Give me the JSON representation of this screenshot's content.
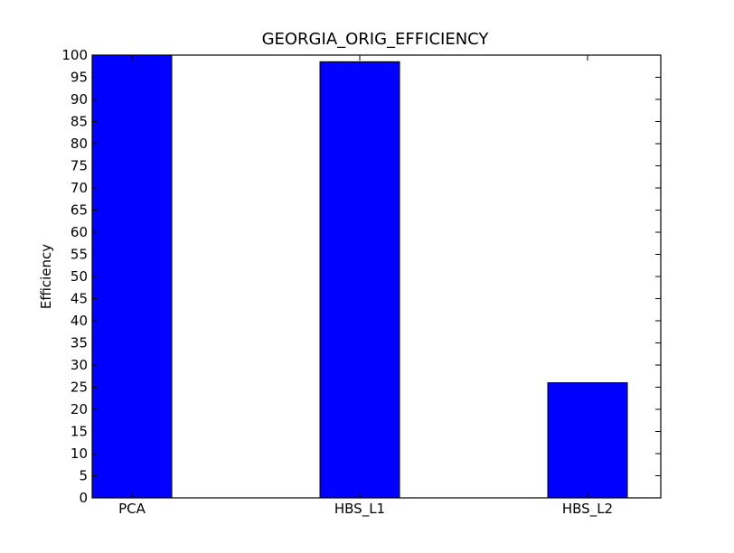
{
  "chart_data": {
    "type": "bar",
    "title": "GEORGIA_ORIG_EFFICIENCY",
    "xlabel": "",
    "ylabel": "Efficiency",
    "categories": [
      "PCA",
      "HBS_L1",
      "HBS_L2"
    ],
    "values": [
      100,
      98.5,
      26
    ],
    "ylim": [
      0,
      100
    ],
    "yticks": [
      0,
      5,
      10,
      15,
      20,
      25,
      30,
      35,
      40,
      45,
      50,
      55,
      60,
      65,
      70,
      75,
      80,
      85,
      90,
      95,
      100
    ],
    "grid": false,
    "legend": "none",
    "bar_color": "#0000ff",
    "edge_color": "#000000"
  }
}
